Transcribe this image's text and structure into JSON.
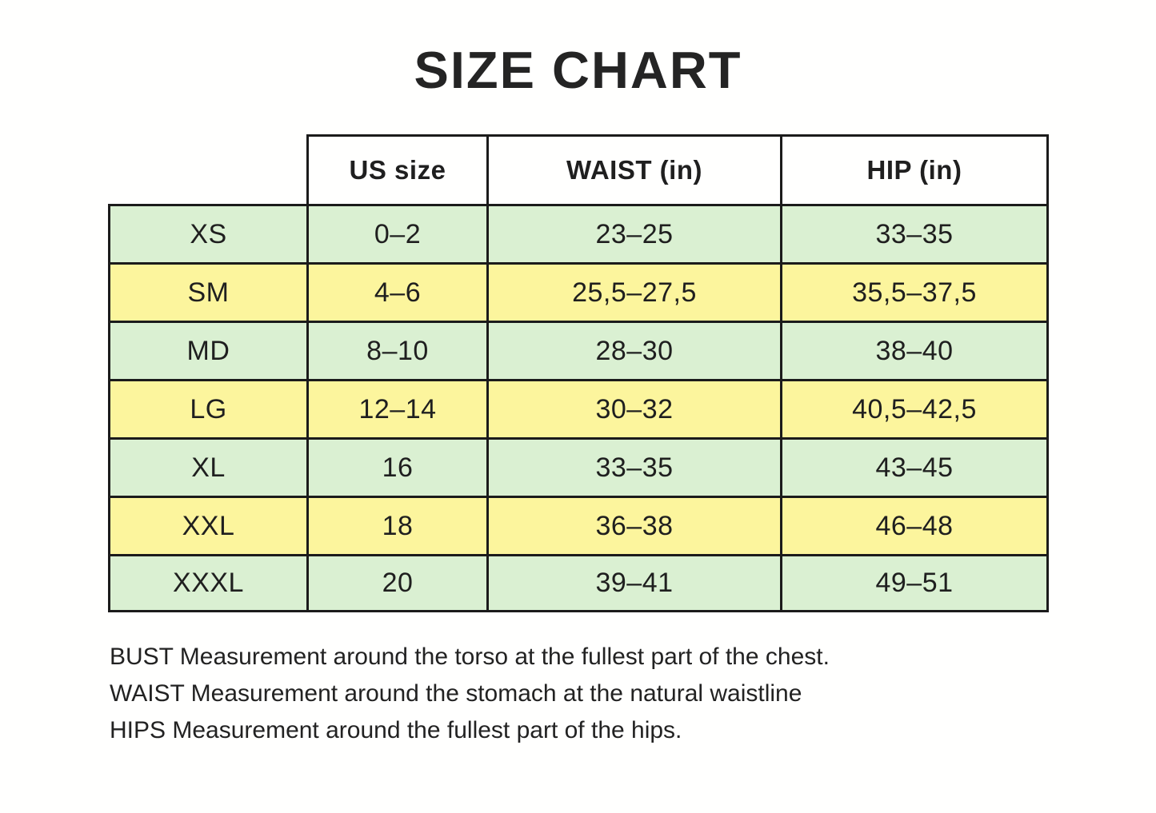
{
  "title": "SIZE CHART",
  "colors": {
    "green": "#daf0d2",
    "yellow": "#fcf59d",
    "border": "#1b1b1b",
    "text": "#1f1f1f",
    "background": "#fffffe"
  },
  "chart_data": {
    "type": "table",
    "title": "SIZE CHART",
    "columns": [
      "",
      "US size",
      "WAIST (in)",
      "HIP (in)"
    ],
    "rows": [
      [
        "XS",
        "0–2",
        "23–25",
        "33–35"
      ],
      [
        "SM",
        "4–6",
        "25,5–27,5",
        "35,5–37,5"
      ],
      [
        "MD",
        "8–10",
        "28–30",
        "38–40"
      ],
      [
        "LG",
        "12–14",
        "30–32",
        "40,5–42,5"
      ],
      [
        "XL",
        "16",
        "33–35",
        "43–45"
      ],
      [
        "XXL",
        "18",
        "36–38",
        "46–48"
      ],
      [
        "XXXL",
        "20",
        "39–41",
        "49–51"
      ]
    ],
    "row_tints": [
      "green",
      "yellow",
      "green",
      "yellow",
      "green",
      "yellow",
      "green"
    ],
    "layout_hints": {
      "first_column_has_no_header": true,
      "header_background": "white",
      "grid_on": true
    }
  },
  "notes": [
    "BUST Measurement around the torso at the fullest part of the chest.",
    "WAIST Measurement around the stomach at the natural waistline",
    "HIPS Measurement around the fullest part of the hips."
  ]
}
